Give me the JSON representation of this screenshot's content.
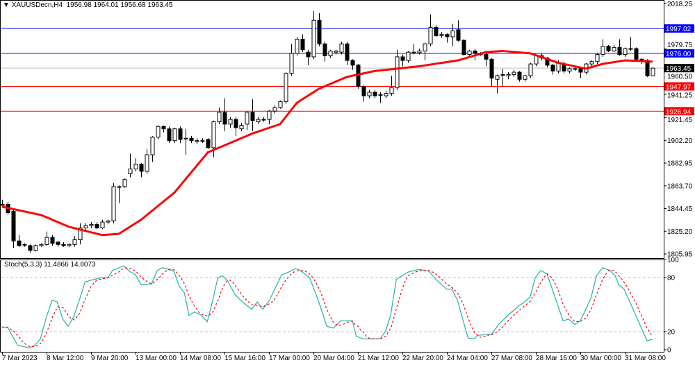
{
  "header": {
    "symbol": "XAUUSDecn,H4",
    "ohlc_text": "1956.98 1964.01 1956.68 1963.45"
  },
  "stoch_header": {
    "name": "Stoch(5,3,3)",
    "main_value": "11.4866",
    "signal_value": "14.8073"
  },
  "colors": {
    "bull_fill": "#ffffff",
    "bear_fill": "#000000",
    "candle_border": "#000000",
    "ma": "#ff0000",
    "stoch_main": "#20b2aa",
    "stoch_signal": "#ff0000",
    "level_blue": "#0000ff",
    "level_red": "#ff0000",
    "current_price": "#c0c0c0"
  },
  "chart_data": [
    {
      "type": "candlestick",
      "symbol": "XAUUSDecn",
      "timeframe": "H4",
      "ylim": [
        1805.95,
        2018.25
      ],
      "y_ticks": [
        "2018.25",
        "1979.75",
        "1960.50",
        "1941.25",
        "1921.45",
        "1902.20",
        "1882.95",
        "1863.70",
        "1844.45",
        "1825.20",
        "1805.95"
      ],
      "y_tick_values": [
        2018.25,
        1979.75,
        1960.5,
        1941.25,
        1921.45,
        1902.2,
        1882.95,
        1863.7,
        1844.45,
        1825.2,
        1805.95
      ],
      "x_ticks": [
        "7 Mar 2023",
        "8 Mar 12:00",
        "9 Mar 20:00",
        "13 Mar 00:00",
        "14 Mar 08:00",
        "15 Mar 16:00",
        "17 Mar 00:00",
        "20 Mar 04:00",
        "21 Mar 12:00",
        "22 Mar 20:00",
        "24 Mar 04:00",
        "27 Mar 08:00",
        "28 Mar 16:00",
        "30 Mar 00:00",
        "31 Mar 08:00"
      ],
      "x_tick_bars": [
        0,
        8,
        16,
        24,
        32,
        40,
        48,
        56,
        64,
        72,
        80,
        88,
        96,
        104,
        112
      ],
      "ohlc": [
        [
          1847,
          1852,
          1845,
          1848
        ],
        [
          1848,
          1850,
          1839,
          1841
        ],
        [
          1842,
          1843,
          1811,
          1817
        ],
        [
          1817,
          1822,
          1812,
          1813
        ],
        [
          1814,
          1815,
          1812,
          1814
        ],
        [
          1813,
          1814,
          1807,
          1809
        ],
        [
          1809,
          1814,
          1808,
          1813
        ],
        [
          1813,
          1815,
          1812,
          1814
        ],
        [
          1814,
          1825,
          1813,
          1820
        ],
        [
          1820,
          1822,
          1813,
          1815
        ],
        [
          1816,
          1817,
          1812,
          1814
        ],
        [
          1814,
          1816,
          1812,
          1813
        ],
        [
          1813,
          1815,
          1812,
          1814
        ],
        [
          1814,
          1821,
          1812,
          1818
        ],
        [
          1818,
          1832,
          1814,
          1828
        ],
        [
          1828,
          1832,
          1826,
          1830
        ],
        [
          1830,
          1833,
          1828,
          1831
        ],
        [
          1831,
          1833,
          1827,
          1828
        ],
        [
          1828,
          1835,
          1827,
          1833
        ],
        [
          1833,
          1835,
          1831,
          1834
        ],
        [
          1834,
          1866,
          1832,
          1863
        ],
        [
          1863,
          1864,
          1849,
          1863
        ],
        [
          1863,
          1870,
          1862,
          1869
        ],
        [
          1874,
          1891,
          1871,
          1878
        ],
        [
          1878,
          1887,
          1876,
          1882
        ],
        [
          1882,
          1883,
          1871,
          1876
        ],
        [
          1876,
          1895,
          1874,
          1890
        ],
        [
          1890,
          1906,
          1884,
          1905
        ],
        [
          1905,
          1915,
          1903,
          1914
        ],
        [
          1914,
          1915,
          1909,
          1912
        ],
        [
          1912,
          1914,
          1900,
          1902
        ],
        [
          1902,
          1913,
          1900,
          1912
        ],
        [
          1912,
          1914,
          1900,
          1903
        ],
        [
          1904,
          1912,
          1890,
          1904
        ],
        [
          1904,
          1906,
          1900,
          1902
        ],
        [
          1902,
          1904,
          1899,
          1902
        ],
        [
          1902,
          1904,
          1900,
          1902
        ],
        [
          1903,
          1904,
          1895,
          1896
        ],
        [
          1896,
          1919,
          1888,
          1918
        ],
        [
          1918,
          1930,
          1916,
          1926
        ],
        [
          1926,
          1938,
          1910,
          1916
        ],
        [
          1916,
          1922,
          1913,
          1920
        ],
        [
          1920,
          1922,
          1906,
          1913
        ],
        [
          1912,
          1917,
          1910,
          1915
        ],
        [
          1916,
          1927,
          1911,
          1926
        ],
        [
          1926,
          1937,
          1910,
          1919
        ],
        [
          1918,
          1922,
          1916,
          1920
        ],
        [
          1920,
          1922,
          1918,
          1920
        ],
        [
          1920,
          1928,
          1916,
          1927
        ],
        [
          1927,
          1932,
          1925,
          1930
        ],
        [
          1930,
          1936,
          1929,
          1935
        ],
        [
          1935,
          1960,
          1933,
          1959
        ],
        [
          1959,
          1984,
          1957,
          1976
        ],
        [
          1976,
          1990,
          1974,
          1988
        ],
        [
          1988,
          1992,
          1977,
          1979
        ],
        [
          1977,
          1979,
          1966,
          1973
        ],
        [
          1973,
          2012,
          1971,
          2004
        ],
        [
          2004,
          2010,
          1982,
          1984
        ],
        [
          1984,
          1986,
          1969,
          1974
        ],
        [
          1974,
          1979,
          1972,
          1978
        ],
        [
          1977,
          1979,
          1975,
          1978
        ],
        [
          1977,
          1986,
          1975,
          1984
        ],
        [
          1984,
          1986,
          1966,
          1970
        ],
        [
          1970,
          1971,
          1962,
          1966
        ],
        [
          1966,
          1967,
          1946,
          1948
        ],
        [
          1948,
          1949,
          1935,
          1940
        ],
        [
          1940,
          1945,
          1938,
          1943
        ],
        [
          1943,
          1945,
          1938,
          1940
        ],
        [
          1941,
          1943,
          1934,
          1941
        ],
        [
          1940,
          1944,
          1938,
          1942
        ],
        [
          1942,
          1957,
          1940,
          1947
        ],
        [
          1947,
          1979,
          1945,
          1973
        ],
        [
          1973,
          1975,
          1965,
          1970
        ],
        [
          1970,
          1978,
          1968,
          1977
        ],
        [
          1977,
          1984,
          1975,
          1977
        ],
        [
          1976.5,
          1980,
          1975,
          1978
        ],
        [
          1978,
          1985,
          1970,
          1984
        ],
        [
          1984,
          2009,
          1982,
          1998
        ],
        [
          1998,
          2000,
          1990,
          1991
        ],
        [
          1991,
          1994,
          1989,
          1992
        ],
        [
          1992,
          1993,
          1985,
          1990
        ],
        [
          1990,
          2001,
          1982,
          1995
        ],
        [
          1996,
          2004,
          1986,
          1987
        ],
        [
          1987,
          1988,
          1974,
          1975
        ],
        [
          1975,
          1979,
          1974,
          1978
        ],
        [
          1978,
          1980,
          1970,
          1976
        ],
        [
          1976,
          1977,
          1974,
          1975
        ],
        [
          1975,
          1976,
          1965,
          1971
        ],
        [
          1971,
          1972,
          1948,
          1955
        ],
        [
          1954,
          1958,
          1942,
          1957
        ],
        [
          1958,
          1963,
          1948,
          1958
        ],
        [
          1957,
          1960,
          1954,
          1958
        ],
        [
          1958,
          1962,
          1956,
          1960
        ],
        [
          1960,
          1961,
          1952,
          1954
        ],
        [
          1954,
          1958,
          1952,
          1957
        ],
        [
          1957,
          1968,
          1955,
          1967
        ],
        [
          1967,
          1975,
          1965,
          1974
        ],
        [
          1974,
          1976,
          1970,
          1972
        ],
        [
          1972,
          1973,
          1964,
          1966
        ],
        [
          1966,
          1967,
          1958,
          1961
        ],
        [
          1961,
          1970,
          1959,
          1968
        ],
        [
          1967,
          1969,
          1959,
          1961
        ],
        [
          1961,
          1964,
          1959,
          1963
        ],
        [
          1963,
          1965,
          1961,
          1963
        ],
        [
          1963,
          1964,
          1955,
          1960
        ],
        [
          1960,
          1968,
          1958,
          1967
        ],
        [
          1967,
          1970,
          1965,
          1969
        ],
        [
          1969,
          1976,
          1967,
          1975
        ],
        [
          1975,
          1988,
          1973,
          1982
        ],
        [
          1982,
          1983,
          1977,
          1978
        ],
        [
          1978,
          1983,
          1977,
          1981
        ],
        [
          1981,
          1988,
          1974,
          1975
        ],
        [
          1975,
          1981,
          1973,
          1980
        ],
        [
          1980,
          1990,
          1978,
          1980
        ],
        [
          1980,
          1981,
          1969,
          1971
        ],
        [
          1971,
          1972,
          1967,
          1970
        ],
        [
          1970,
          1971,
          1956,
          1957
        ],
        [
          1956.98,
          1964.01,
          1956.68,
          1963.45
        ]
      ],
      "moving_average": [
        [
          0,
          1846
        ],
        [
          7,
          1839
        ],
        [
          12,
          1829
        ],
        [
          18,
          1822
        ],
        [
          21,
          1823
        ],
        [
          25,
          1835
        ],
        [
          31,
          1858
        ],
        [
          37,
          1892
        ],
        [
          40,
          1898
        ],
        [
          45,
          1908
        ],
        [
          50,
          1916
        ],
        [
          53,
          1934
        ],
        [
          57,
          1946
        ],
        [
          62,
          1956
        ],
        [
          67,
          1961
        ],
        [
          75,
          1965
        ],
        [
          82,
          1970
        ],
        [
          87,
          1977
        ],
        [
          90,
          1978
        ],
        [
          95,
          1976
        ],
        [
          100,
          1968
        ],
        [
          105,
          1963
        ],
        [
          108,
          1967
        ],
        [
          112,
          1970
        ],
        [
          117,
          1969
        ]
      ],
      "levels": [
        {
          "label": "1997.02",
          "value": 1997.02,
          "color": "#0000ff"
        },
        {
          "label": "1976.00",
          "value": 1976.0,
          "color": "#0000ff"
        },
        {
          "label": "1947.97",
          "value": 1947.97,
          "color": "#ff0000"
        },
        {
          "label": "1926.94",
          "value": 1926.94,
          "color": "#ff0000"
        }
      ],
      "current_price": {
        "label": "1963.45",
        "value": 1963.45
      }
    },
    {
      "type": "line",
      "indicator": "Stoch(5,3,3)",
      "ylim": [
        0,
        100
      ],
      "y_ticks": [
        "100",
        "80",
        "20",
        "0"
      ],
      "y_tick_values": [
        100,
        80,
        20,
        0
      ],
      "levels": [
        80,
        20
      ],
      "main": [
        [
          0,
          25
        ],
        [
          1,
          25
        ],
        [
          1.6,
          18
        ],
        [
          2.8,
          5
        ],
        [
          4.9,
          2
        ],
        [
          5.9,
          5
        ],
        [
          6.9,
          12
        ],
        [
          7.9,
          35
        ],
        [
          9,
          55
        ],
        [
          9.9,
          53
        ],
        [
          10.9,
          34
        ],
        [
          11.9,
          26
        ],
        [
          12.9,
          37
        ],
        [
          14,
          57
        ],
        [
          14.9,
          75
        ],
        [
          15.9,
          77
        ],
        [
          17.9,
          80
        ],
        [
          19,
          80
        ],
        [
          19.9,
          88
        ],
        [
          21.9,
          93
        ],
        [
          22.9,
          87
        ],
        [
          24,
          83
        ],
        [
          25,
          72
        ],
        [
          26.9,
          73
        ],
        [
          27.9,
          88
        ],
        [
          28.9,
          91
        ],
        [
          30.9,
          87
        ],
        [
          31.9,
          70
        ],
        [
          32.8,
          63
        ],
        [
          33.6,
          38
        ],
        [
          34.6,
          42
        ],
        [
          35.9,
          38
        ],
        [
          36.9,
          31
        ],
        [
          37.9,
          55
        ],
        [
          38.8,
          80
        ],
        [
          39.6,
          82
        ],
        [
          40.6,
          76
        ],
        [
          41.9,
          61
        ],
        [
          43.4,
          52
        ],
        [
          44.9,
          45
        ],
        [
          45.9,
          53
        ],
        [
          46.9,
          45
        ],
        [
          48.1,
          55
        ],
        [
          49.4,
          72
        ],
        [
          50.3,
          83
        ],
        [
          51.5,
          86
        ],
        [
          52.8,
          90
        ],
        [
          53.6,
          88
        ],
        [
          55.3,
          80
        ],
        [
          56.5,
          61
        ],
        [
          57.4,
          45
        ],
        [
          58.4,
          26
        ],
        [
          59.6,
          24
        ],
        [
          60.9,
          32
        ],
        [
          63,
          32
        ],
        [
          63.7,
          15
        ],
        [
          65,
          12
        ],
        [
          68,
          12
        ],
        [
          69,
          21
        ],
        [
          69.9,
          39
        ],
        [
          70.9,
          78
        ],
        [
          73,
          86
        ],
        [
          75,
          89
        ],
        [
          76.8,
          87
        ],
        [
          78,
          78
        ],
        [
          80,
          67
        ],
        [
          80.9,
          67
        ],
        [
          81.9,
          55
        ],
        [
          83.8,
          13
        ],
        [
          84.9,
          12
        ],
        [
          85.6,
          16
        ],
        [
          88,
          17
        ],
        [
          89.3,
          28
        ],
        [
          91.3,
          40
        ],
        [
          93,
          49
        ],
        [
          94,
          53
        ],
        [
          95,
          59
        ],
        [
          95.9,
          80
        ],
        [
          96.9,
          88
        ],
        [
          98,
          84
        ],
        [
          98.8,
          70
        ],
        [
          100.9,
          32
        ],
        [
          101.9,
          34
        ],
        [
          103,
          28
        ],
        [
          104,
          32
        ],
        [
          105.9,
          57
        ],
        [
          106.9,
          82
        ],
        [
          108,
          91
        ],
        [
          109.3,
          88
        ],
        [
          110.3,
          82
        ],
        [
          110.9,
          72
        ],
        [
          111.9,
          67
        ],
        [
          116,
          10
        ],
        [
          117,
          11.4866
        ]
      ],
      "signal_last": 14.8073
    }
  ]
}
